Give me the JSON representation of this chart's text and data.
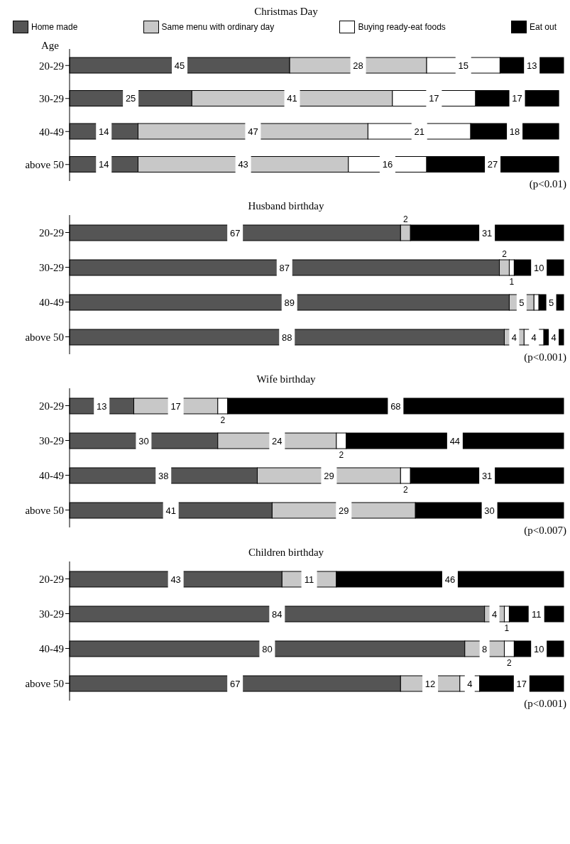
{
  "chart_data": [
    {
      "type": "bar",
      "orientation": "horizontal",
      "stacked": true,
      "title": "Christmas Day",
      "ylabel": "Age",
      "categories": [
        "20-29",
        "30-29",
        "40-49",
        "above 50"
      ],
      "legend": "top",
      "data_labels": true,
      "annotations": [
        "(p<0.01)"
      ],
      "series": [
        {
          "name": "Home made",
          "color": "#555555",
          "values": [
            45,
            25,
            14,
            14
          ]
        },
        {
          "name": "Same menu with ordinary day",
          "color": "#c8c8c8",
          "values": [
            28,
            41,
            47,
            43
          ]
        },
        {
          "name": "Buying ready-eat foods",
          "color": "#ffffff",
          "values": [
            15,
            17,
            21,
            16
          ]
        },
        {
          "name": "Eat out",
          "color": "#000000",
          "values": [
            13,
            17,
            18,
            27
          ]
        }
      ]
    },
    {
      "type": "bar",
      "orientation": "horizontal",
      "stacked": true,
      "title": "Husband birthday",
      "categories": [
        "20-29",
        "30-29",
        "40-49",
        "above 50"
      ],
      "data_labels": true,
      "annotations": [
        "(p<0.001)"
      ],
      "series": [
        {
          "color": "#555555",
          "values": [
            67,
            87,
            89,
            88
          ]
        },
        {
          "color": "#c8c8c8",
          "values": [
            2,
            2,
            5,
            4
          ]
        },
        {
          "color": "#ffffff",
          "values": [
            0,
            1,
            1,
            4
          ],
          "value_labels": [
            null,
            "1",
            null,
            "4"
          ]
        },
        {
          "color": "#000000",
          "values": [
            31,
            10,
            5,
            4
          ]
        }
      ]
    },
    {
      "type": "bar",
      "orientation": "horizontal",
      "stacked": true,
      "title": "Wife birthday",
      "categories": [
        "20-29",
        "30-29",
        "40-49",
        "above 50"
      ],
      "data_labels": true,
      "annotations": [
        "(p<0.007)"
      ],
      "series": [
        {
          "color": "#555555",
          "values": [
            13,
            30,
            38,
            41
          ]
        },
        {
          "color": "#c8c8c8",
          "values": [
            17,
            24,
            29,
            29
          ]
        },
        {
          "color": "#ffffff",
          "values": [
            2,
            2,
            2,
            0
          ],
          "value_labels": [
            "2",
            "2",
            "2",
            null
          ]
        },
        {
          "color": "#000000",
          "values": [
            68,
            44,
            31,
            30
          ]
        }
      ]
    },
    {
      "type": "bar",
      "orientation": "horizontal",
      "stacked": true,
      "title": "Children birthday",
      "categories": [
        "20-29",
        "30-29",
        "40-49",
        "above 50"
      ],
      "data_labels": true,
      "annotations": [
        "(p<0.001)"
      ],
      "series": [
        {
          "color": "#555555",
          "values": [
            43,
            84,
            80,
            67
          ]
        },
        {
          "color": "#c8c8c8",
          "values": [
            11,
            4,
            8,
            12
          ]
        },
        {
          "color": "#ffffff",
          "values": [
            0,
            1,
            2,
            4
          ],
          "value_labels": [
            null,
            "1",
            "2",
            "4"
          ]
        },
        {
          "color": "#000000",
          "values": [
            46,
            11,
            10,
            17
          ]
        }
      ]
    }
  ]
}
